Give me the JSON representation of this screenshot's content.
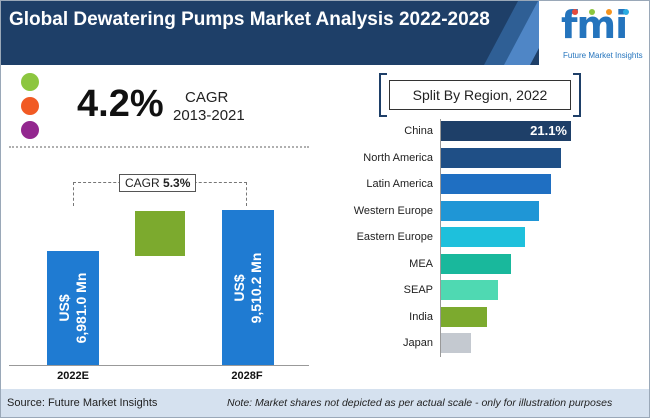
{
  "header": {
    "title": "Global Dewatering Pumps Market Analysis 2022-2028",
    "logo_text": "fmi",
    "logo_subtitle": "Future Market Insights",
    "logo_dot_colors": [
      "#e94b3c",
      "#8cc63f",
      "#f7941d",
      "#29abe2"
    ]
  },
  "cagr_block": {
    "value": "4.2%",
    "label": "CAGR",
    "period": "2013-2021",
    "dot_colors": [
      "#8cc63f",
      "#f15a24",
      "#93278f"
    ]
  },
  "chart_data": [
    {
      "type": "bar",
      "categories": [
        "2022E",
        "2028F"
      ],
      "values": [
        6981.0,
        9510.2
      ],
      "bar_labels": [
        "US$\n6,981.0 Mn",
        "US$\n9,510.2 Mn"
      ],
      "increment_bar": {
        "from": 6981.0,
        "to": 9510.2,
        "color": "#7caa2e"
      },
      "bar_color": "#1f7bd2",
      "cagr_annotation": {
        "label": "CAGR",
        "value": "5.3%"
      }
    },
    {
      "type": "bar",
      "orientation": "horizontal",
      "title": "Split By Region, 2022",
      "categories": [
        "China",
        "North America",
        "Latin America",
        "Western Europe",
        "Eastern Europe",
        "MEA",
        "SEAP",
        "India",
        "Japan"
      ],
      "values": [
        21.1,
        19.4,
        17.9,
        15.9,
        13.6,
        11.4,
        9.3,
        7.5,
        4.8
      ],
      "value_label": "21.1%",
      "colors": [
        "#1e3f68",
        "#1f4f86",
        "#1f6fc2",
        "#1f96d6",
        "#1ec0dc",
        "#19b89c",
        "#4fd9b2",
        "#7caa2e",
        "#c4c9d0"
      ]
    }
  ],
  "footer": {
    "source": "Source: Future Market Insights",
    "note": "Note: Market  shares not depicted as per actual scale - only for illustration purposes"
  }
}
